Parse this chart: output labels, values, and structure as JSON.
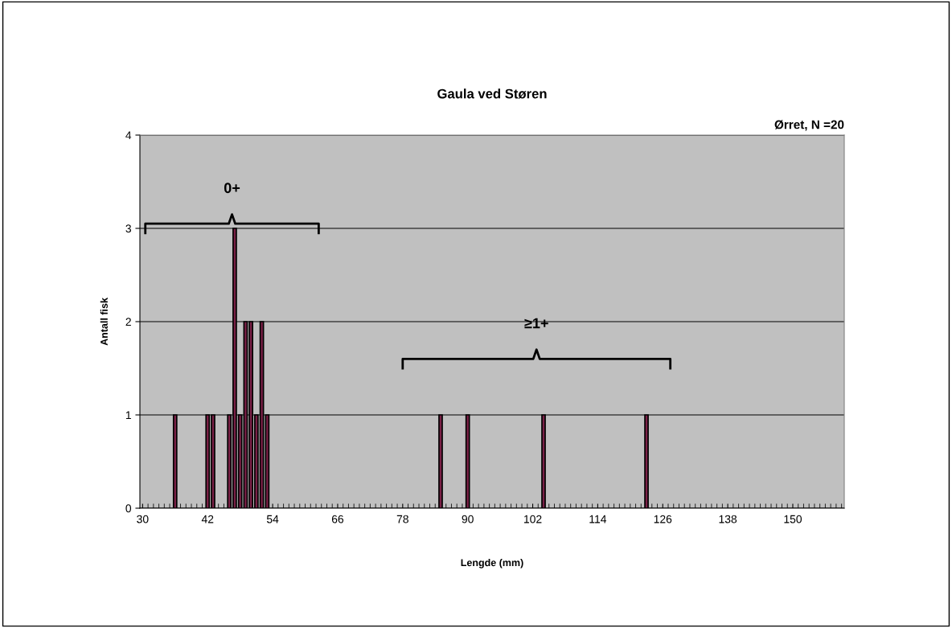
{
  "chart_data": {
    "type": "bar",
    "title": "Gaula ved Støren",
    "xlabel": "Lengde (mm)",
    "ylabel": "Antall fisk",
    "x": [
      36,
      42,
      43,
      46,
      47,
      48,
      49,
      50,
      51,
      52,
      53,
      85,
      90,
      104,
      123
    ],
    "values": [
      1,
      1,
      1,
      1,
      3,
      1,
      2,
      2,
      1,
      2,
      1,
      1,
      1,
      1,
      1
    ],
    "color": "#7a2046",
    "xlim": [
      29.5,
      159.5
    ],
    "xticks": [
      30,
      42,
      54,
      66,
      78,
      90,
      102,
      114,
      126,
      138,
      150
    ],
    "ylim": [
      0,
      4
    ],
    "yticks": [
      0,
      1,
      2,
      3,
      4
    ],
    "grid": "y",
    "annotations": [
      "Ørret, N =20",
      "0+",
      "≥1+"
    ]
  }
}
